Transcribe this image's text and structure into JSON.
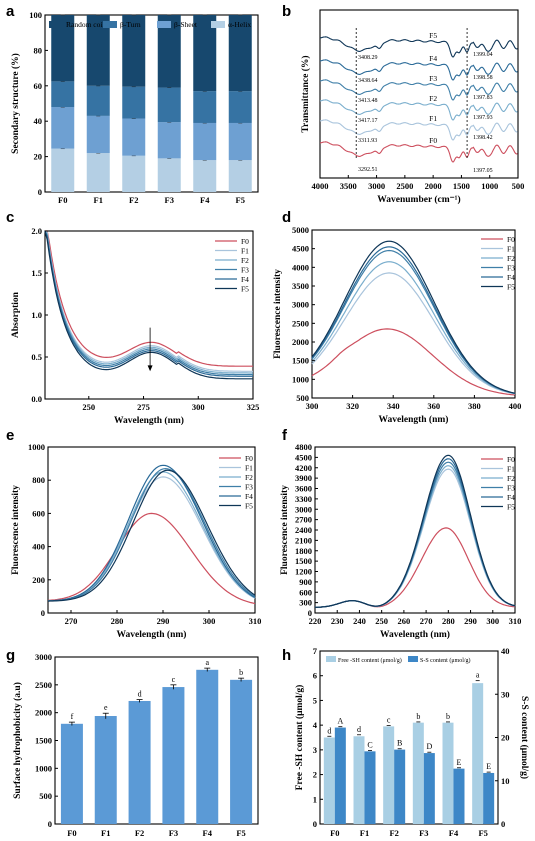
{
  "colors": {
    "random_coil": "#17486e",
    "beta_turn": "#3673a3",
    "beta_sheet": "#6ea0d2",
    "alpha_helix": "#b4cfe4",
    "F0": "#cd4f5e",
    "F1": "#a9c4dc",
    "F2": "#7aaecd",
    "F3": "#3f7fa8",
    "F4": "#2a6a98",
    "F5": "#0f3657",
    "bar_g": "#5b9ad6",
    "sh": "#a9cfe4",
    "ss": "#3d87c7"
  },
  "chart_data": [
    {
      "id": "a",
      "type": "bar",
      "panel_label": "a",
      "categories": [
        "F0",
        "F1",
        "F2",
        "F3",
        "F4",
        "F5"
      ],
      "ylabel": "Secondary structure (%)",
      "ylim": [
        0,
        100
      ],
      "yticks": [
        0,
        20,
        40,
        60,
        80,
        100
      ],
      "stacked": true,
      "series": [
        {
          "name": "α-Helix",
          "key": "alpha_helix",
          "values": [
            24.5,
            22,
            20.5,
            19,
            18,
            18
          ]
        },
        {
          "name": "β-Sheet",
          "key": "beta_sheet",
          "values": [
            23.5,
            21,
            21,
            20.5,
            21,
            21
          ]
        },
        {
          "name": "β-Turn",
          "key": "beta_turn",
          "values": [
            14.5,
            17,
            18,
            19.5,
            18,
            18
          ]
        },
        {
          "name": "Random coil",
          "key": "random_coil",
          "values": [
            37.5,
            40,
            40.5,
            41,
            43,
            43
          ]
        }
      ]
    },
    {
      "id": "b",
      "type": "line",
      "panel_label": "b",
      "xlabel": "Wavenumber (cm⁻¹)",
      "ylabel": "Transmittance (%)",
      "xlim": [
        4000,
        500
      ],
      "xticks": [
        4000,
        3500,
        3000,
        2500,
        2000,
        1500,
        1000,
        500
      ],
      "series": [
        {
          "name": "F0",
          "key": "F0",
          "peaks": [
            "3292.51",
            "1397.05"
          ]
        },
        {
          "name": "F1",
          "key": "F1",
          "peaks": [
            "3311.93",
            "1398.42"
          ]
        },
        {
          "name": "F2",
          "key": "F2",
          "peaks": [
            "3417.17",
            "1397.93"
          ]
        },
        {
          "name": "F3",
          "key": "F3",
          "peaks": [
            "3413.48",
            "1397.83"
          ]
        },
        {
          "name": "F4",
          "key": "F4",
          "peaks": [
            "3438.64",
            "1398.58"
          ]
        },
        {
          "name": "F5",
          "key": "F5",
          "peaks": [
            "3408.29",
            "1399.04"
          ]
        }
      ]
    },
    {
      "id": "c",
      "type": "line",
      "panel_label": "c",
      "xlabel": "Wavelength (nm)",
      "ylabel": "Absorption",
      "xlim": [
        230,
        325
      ],
      "ylim": [
        0,
        2.0
      ],
      "xticks": [
        250,
        275,
        300,
        325
      ],
      "yticks": [
        0.0,
        0.5,
        1.0,
        1.5,
        2.0
      ],
      "series": [
        {
          "name": "F0",
          "key": "F0",
          "peak": 0.68,
          "tail": 0.37
        },
        {
          "name": "F1",
          "key": "F1",
          "peak": 0.64,
          "tail": 0.31
        },
        {
          "name": "F2",
          "key": "F2",
          "peak": 0.62,
          "tail": 0.29
        },
        {
          "name": "F3",
          "key": "F3",
          "peak": 0.6,
          "tail": 0.27
        },
        {
          "name": "F4",
          "key": "F4",
          "peak": 0.58,
          "tail": 0.25
        },
        {
          "name": "F5",
          "key": "F5",
          "peak": 0.56,
          "tail": 0.22
        }
      ]
    },
    {
      "id": "d",
      "type": "line",
      "panel_label": "d",
      "xlabel": "Wavelength (nm)",
      "ylabel": "Fluorescence intensity",
      "xlim": [
        300,
        400
      ],
      "ylim": [
        500,
        5000
      ],
      "xticks": [
        300,
        320,
        340,
        360,
        380,
        400
      ],
      "yticks": [
        500,
        1000,
        1500,
        2000,
        2500,
        3000,
        3500,
        4000,
        4500,
        5000
      ],
      "series": [
        {
          "name": "F0",
          "key": "F0",
          "peak": 2350,
          "center": 337
        },
        {
          "name": "F1",
          "key": "F1",
          "peak": 3850,
          "center": 338
        },
        {
          "name": "F2",
          "key": "F2",
          "peak": 4150,
          "center": 338
        },
        {
          "name": "F3",
          "key": "F3",
          "peak": 4450,
          "center": 338
        },
        {
          "name": "F4",
          "key": "F4",
          "peak": 4550,
          "center": 338
        },
        {
          "name": "F5",
          "key": "F5",
          "peak": 4700,
          "center": 338
        }
      ]
    },
    {
      "id": "e",
      "type": "line",
      "panel_label": "e",
      "xlabel": "Wavelength (nm)",
      "ylabel": "Fluorescence intensity",
      "xlim": [
        265,
        310
      ],
      "ylim": [
        0,
        1000
      ],
      "xticks": [
        270,
        280,
        290,
        300,
        310
      ],
      "yticks": [
        0,
        200,
        400,
        600,
        800,
        1000
      ],
      "series": [
        {
          "name": "F0",
          "key": "F0",
          "peak": 600,
          "center": 287.5
        },
        {
          "name": "F1",
          "key": "F1",
          "peak": 820,
          "center": 290
        },
        {
          "name": "F2",
          "key": "F2",
          "peak": 850,
          "center": 290
        },
        {
          "name": "F3",
          "key": "F3",
          "peak": 870,
          "center": 290.5
        },
        {
          "name": "F4",
          "key": "F4",
          "peak": 890,
          "center": 290
        },
        {
          "name": "F5",
          "key": "F5",
          "peak": 860,
          "center": 291
        }
      ]
    },
    {
      "id": "f",
      "type": "line",
      "panel_label": "f",
      "xlabel": "Wavelength (nm)",
      "ylabel": "Fluorescence intensity",
      "xlim": [
        220,
        310
      ],
      "ylim": [
        0,
        4800
      ],
      "xticks": [
        220,
        230,
        240,
        250,
        260,
        270,
        280,
        290,
        300,
        310
      ],
      "yticks": [
        0,
        300,
        600,
        900,
        1200,
        1500,
        1800,
        2100,
        2400,
        2700,
        3000,
        3300,
        3600,
        3900,
        4200,
        4500,
        4800
      ],
      "series": [
        {
          "name": "F0",
          "key": "F0",
          "peak": 2450,
          "center": 279
        },
        {
          "name": "F1",
          "key": "F1",
          "peak": 4150,
          "center": 280
        },
        {
          "name": "F2",
          "key": "F2",
          "peak": 4250,
          "center": 280
        },
        {
          "name": "F3",
          "key": "F3",
          "peak": 4350,
          "center": 280
        },
        {
          "name": "F4",
          "key": "F4",
          "peak": 4450,
          "center": 280
        },
        {
          "name": "F5",
          "key": "F5",
          "peak": 4550,
          "center": 280
        }
      ]
    },
    {
      "id": "g",
      "type": "bar",
      "panel_label": "g",
      "categories": [
        "F0",
        "F1",
        "F2",
        "F3",
        "F4",
        "F5"
      ],
      "ylabel": "Surface hydrophobicity (a.u)",
      "ylim": [
        0,
        3000
      ],
      "yticks": [
        0,
        500,
        1000,
        1500,
        2000,
        2500,
        3000
      ],
      "values": [
        1800,
        1940,
        2210,
        2460,
        2770,
        2590
      ],
      "errors": [
        30,
        50,
        25,
        40,
        30,
        30
      ],
      "letters": [
        "f",
        "e",
        "d",
        "c",
        "a",
        "b"
      ]
    },
    {
      "id": "h",
      "type": "bar",
      "panel_label": "h",
      "categories": [
        "F0",
        "F1",
        "F2",
        "F3",
        "F4",
        "F5"
      ],
      "ylabel": "Free -SH content (μmol/g)",
      "ylabel2": "S-S content (μmol/g)",
      "ylim": [
        0,
        7
      ],
      "ylim2": [
        0,
        40
      ],
      "yticks": [
        0,
        1,
        2,
        3,
        4,
        5,
        6,
        7
      ],
      "yticks2": [
        0,
        10,
        20,
        30,
        40
      ],
      "series": [
        {
          "name": "Free -SH content (μmol/g)",
          "key": "sh",
          "axis": "left",
          "values": [
            3.5,
            3.55,
            3.95,
            4.1,
            4.1,
            5.7
          ],
          "errors": [
            0.05,
            0.06,
            0.04,
            0.03,
            0.03,
            0.1
          ],
          "letters": [
            "d",
            "d",
            "c",
            "b",
            "b",
            "a"
          ]
        },
        {
          "name": "S-S content (μmol/g)",
          "key": "ss",
          "axis": "right",
          "values": [
            22.3,
            16.8,
            17.2,
            16.4,
            12.8,
            11.8
          ],
          "errors": [
            0.2,
            0.2,
            0.2,
            0.2,
            0.2,
            0.2
          ],
          "letters": [
            "A",
            "C",
            "B",
            "D",
            "E",
            "E"
          ]
        }
      ]
    }
  ]
}
